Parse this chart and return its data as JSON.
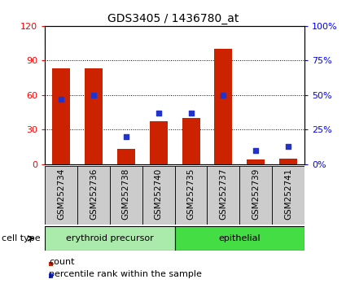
{
  "title": "GDS3405 / 1436780_at",
  "samples": [
    "GSM252734",
    "GSM252736",
    "GSM252738",
    "GSM252740",
    "GSM252735",
    "GSM252737",
    "GSM252739",
    "GSM252741"
  ],
  "count_values": [
    83,
    83,
    13,
    37,
    40,
    100,
    4,
    5
  ],
  "percentile_values": [
    47,
    50,
    20,
    37,
    37,
    50,
    10,
    13
  ],
  "bar_color": "#cc2200",
  "marker_color": "#2233cc",
  "left_ylim": [
    0,
    120
  ],
  "right_ylim": [
    0,
    100
  ],
  "left_yticks": [
    0,
    30,
    60,
    90,
    120
  ],
  "right_yticks": [
    0,
    25,
    50,
    75,
    100
  ],
  "right_yticklabels": [
    "0%",
    "25%",
    "50%",
    "75%",
    "100%"
  ],
  "groups": [
    {
      "label": "erythroid precursor",
      "start": 0,
      "end": 4,
      "color": "#aaeaaa"
    },
    {
      "label": "epithelial",
      "start": 4,
      "end": 8,
      "color": "#44dd44"
    }
  ],
  "group_label_prefix": "cell type",
  "legend_count_label": "count",
  "legend_percentile_label": "percentile rank within the sample",
  "background_color": "#ffffff",
  "plot_bg_color": "#ffffff",
  "sample_box_color": "#cccccc",
  "title_fontsize": 10,
  "tick_fontsize": 8,
  "label_fontsize": 7.5,
  "group_fontsize": 8,
  "legend_fontsize": 8,
  "bar_width": 0.55
}
